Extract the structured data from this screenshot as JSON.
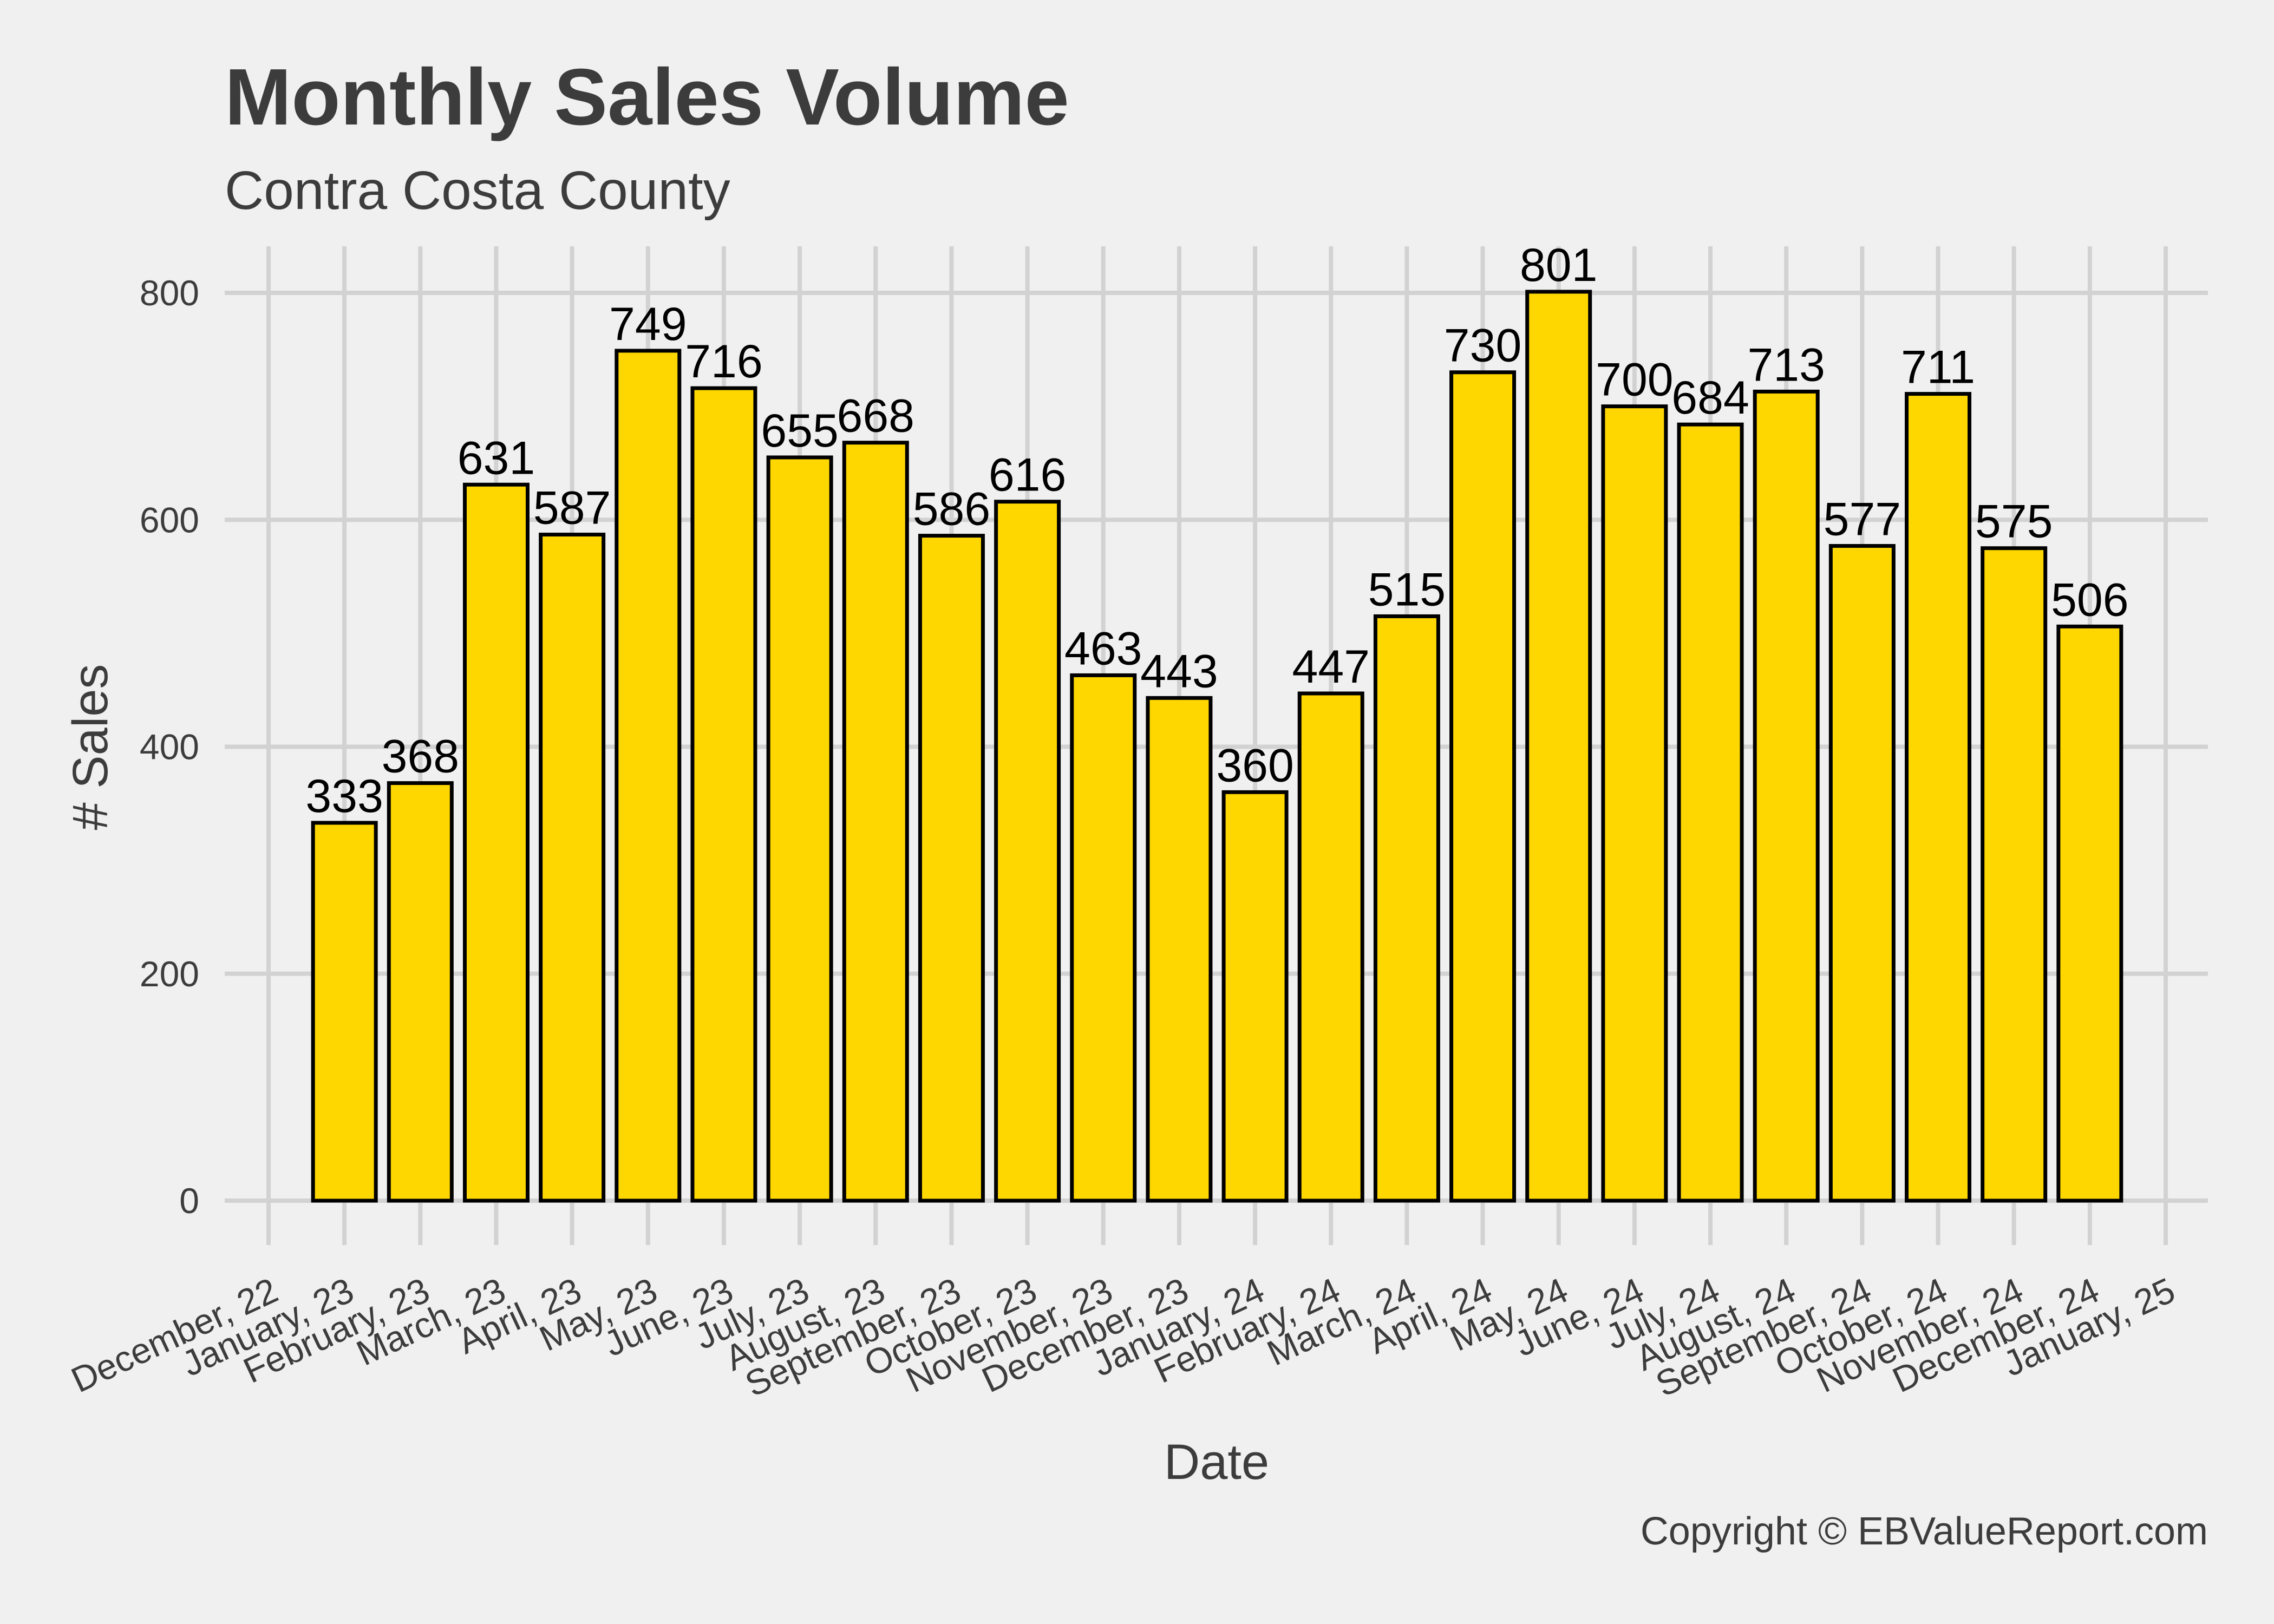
{
  "chart_data": {
    "type": "bar",
    "title": "Monthly Sales Volume",
    "subtitle": "Contra Costa County",
    "xlabel": "Date",
    "ylabel": "# Sales",
    "caption": "Copyright  © EBValueReport.com",
    "ylim": [
      0,
      800
    ],
    "y_ticks": [
      0,
      200,
      400,
      600,
      800
    ],
    "grid": true,
    "bar_color": "#ffd700",
    "bar_outline": "#000000",
    "x_tick_labels": [
      "December, 22",
      "January, 23",
      "February, 23",
      "March, 23",
      "April, 23",
      "May, 23",
      "June, 23",
      "July, 23",
      "August, 23",
      "September, 23",
      "October, 23",
      "November, 23",
      "December, 23",
      "January, 24",
      "February, 24",
      "March, 24",
      "April, 24",
      "May, 24",
      "June, 24",
      "July, 24",
      "August, 24",
      "September, 24",
      "October, 24",
      "November, 24",
      "December, 24",
      "January, 25"
    ],
    "categories": [
      "January, 23",
      "February, 23",
      "March, 23",
      "April, 23",
      "May, 23",
      "June, 23",
      "July, 23",
      "August, 23",
      "September, 23",
      "October, 23",
      "November, 23",
      "December, 23",
      "January, 24",
      "February, 24",
      "March, 24",
      "April, 24",
      "May, 24",
      "June, 24",
      "July, 24",
      "August, 24",
      "September, 24",
      "October, 24",
      "November, 24",
      "December, 24"
    ],
    "values": [
      333,
      368,
      631,
      587,
      749,
      716,
      655,
      668,
      586,
      616,
      463,
      443,
      360,
      447,
      515,
      730,
      801,
      700,
      684,
      713,
      577,
      711,
      575,
      506
    ]
  }
}
